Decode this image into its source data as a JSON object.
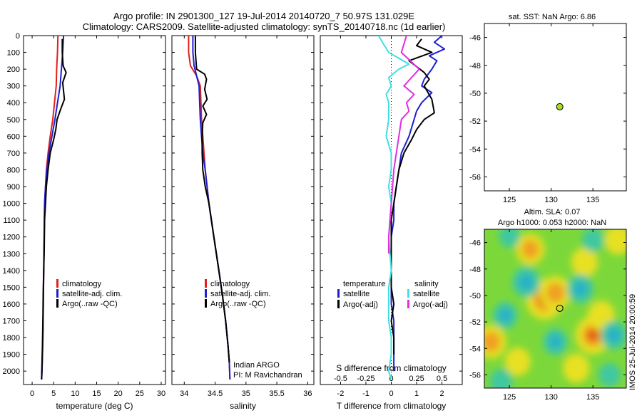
{
  "header": {
    "line1": "Argo profile: IN 2901300_127 19-Jul-2014 20140720_7 50.97S 131.029E",
    "line2": "Climatology: CARS2009. Satellite-adjusted climatology: synTS_20140718.nc (1d earlier)"
  },
  "colors": {
    "climatology": "#e0201a",
    "satellite": "#1f1fd0",
    "argo": "#000000",
    "sal_satellite": "#3fe0e0",
    "sal_argo": "#e030e0",
    "marker": "#aadd22"
  },
  "chart_data": [
    {
      "id": "temperature",
      "type": "line",
      "xlabel": "temperature (deg C)",
      "ylabel": "",
      "xlim": [
        -2,
        31
      ],
      "ylim": [
        2080,
        0
      ],
      "xticks": [
        0,
        5,
        10,
        15,
        20,
        25,
        30
      ],
      "yticks": [
        0,
        100,
        200,
        300,
        400,
        500,
        600,
        700,
        800,
        900,
        1000,
        1100,
        1200,
        1300,
        1400,
        1500,
        1600,
        1700,
        1800,
        1900,
        2000
      ],
      "legend": [
        "climatology",
        "satellite-adj. clim.",
        "Argo(..raw -QC)"
      ],
      "series": [
        {
          "name": "climatology",
          "color": "#e0201a",
          "x": [
            6.0,
            5.9,
            5.7,
            5.6,
            5.2,
            4.8,
            4.2,
            3.7,
            3.3,
            3.1,
            2.9,
            2.8,
            2.7,
            2.6,
            2.5,
            2.4,
            2.3,
            2.2
          ],
          "y": [
            0,
            100,
            200,
            300,
            400,
            500,
            600,
            700,
            800,
            900,
            1000,
            1200,
            1400,
            1600,
            1800,
            1900,
            2000,
            2050
          ]
        },
        {
          "name": "satellite-adj. clim.",
          "color": "#1f1fd0",
          "x": [
            7.3,
            7.1,
            6.8,
            6.5,
            5.9,
            5.3,
            4.6,
            3.9,
            3.4,
            3.1,
            2.9,
            2.8,
            2.7,
            2.6,
            2.5,
            2.4,
            2.3,
            2.2
          ],
          "y": [
            0,
            100,
            200,
            300,
            400,
            500,
            600,
            700,
            800,
            900,
            1000,
            1200,
            1400,
            1600,
            1800,
            1900,
            2000,
            2050
          ]
        },
        {
          "name": "Argo(..raw -QC)",
          "color": "#000000",
          "x": [
            7.0,
            7.0,
            7.2,
            7.9,
            7.1,
            7.5,
            6.6,
            5.8,
            5.5,
            5.0,
            4.2,
            3.7,
            3.3,
            3.1,
            2.9,
            2.8,
            2.6,
            2.5,
            2.4,
            2.3,
            2.2
          ],
          "y": [
            20,
            100,
            180,
            220,
            280,
            380,
            440,
            500,
            560,
            620,
            700,
            800,
            900,
            1000,
            1100,
            1300,
            1500,
            1700,
            1850,
            1950,
            2050
          ]
        }
      ]
    },
    {
      "id": "salinity",
      "type": "line",
      "xlabel": "salinity",
      "ylabel": "",
      "xlim": [
        33.8,
        36.1
      ],
      "ylim": [
        2080,
        0
      ],
      "xticks": [
        34,
        34.5,
        35,
        35.5,
        36
      ],
      "legend": [
        "climatology",
        "satellite-adj. clim.",
        "Argo(..raw -QC)"
      ],
      "annotations": [
        "Indian ARGO",
        "PI: M Ravichandran"
      ],
      "series": [
        {
          "name": "climatology",
          "color": "#e0201a",
          "x": [
            34.07,
            34.07,
            34.1,
            34.2,
            34.26,
            34.27,
            34.28,
            34.3,
            34.34,
            34.4,
            34.48,
            34.56,
            34.62,
            34.67,
            34.71,
            34.73,
            34.74
          ],
          "y": [
            0,
            100,
            180,
            240,
            300,
            400,
            500,
            600,
            800,
            1000,
            1200,
            1400,
            1550,
            1700,
            1850,
            1950,
            2050
          ]
        },
        {
          "name": "satellite-adj. clim.",
          "color": "#1f1fd0",
          "x": [
            34.14,
            34.14,
            34.16,
            34.2,
            34.24,
            34.25,
            34.26,
            34.28,
            34.3,
            34.34,
            34.4,
            34.48,
            34.56,
            34.62,
            34.67,
            34.71,
            34.73,
            34.74
          ],
          "y": [
            0,
            100,
            180,
            240,
            300,
            400,
            500,
            600,
            700,
            800,
            1000,
            1200,
            1400,
            1550,
            1700,
            1850,
            1950,
            2050
          ]
        },
        {
          "name": "Argo(..raw -QC)",
          "color": "#000000",
          "x": [
            34.18,
            34.18,
            34.2,
            34.33,
            34.36,
            34.33,
            34.37,
            34.3,
            34.36,
            34.3,
            34.29,
            34.29,
            34.3,
            34.34,
            34.4,
            34.48,
            34.56,
            34.62,
            34.67,
            34.71,
            34.73
          ],
          "y": [
            0,
            100,
            200,
            230,
            260,
            320,
            380,
            420,
            470,
            520,
            600,
            700,
            800,
            900,
            1000,
            1200,
            1400,
            1550,
            1700,
            1850,
            1950
          ]
        }
      ]
    },
    {
      "id": "difference",
      "type": "line",
      "xlabel": "T difference from climatology",
      "xlabel_top": "S difference from climatology",
      "xlim": [
        -2.8,
        2.8
      ],
      "ylim": [
        2080,
        0
      ],
      "xticks": [
        -2,
        -1,
        0,
        1,
        2
      ],
      "xticks_s": [
        -0.5,
        -0.25,
        0,
        0.25,
        0.5
      ],
      "xticks_s_labels": [
        "-0.5",
        "-0.25",
        "0",
        "0.25",
        "0.5"
      ],
      "legend_titles": [
        "temperature",
        "salinity"
      ],
      "legend": [
        "satellite",
        "Argo(-adj)",
        "satellite",
        "Argo(-adj)"
      ],
      "series": [
        {
          "name": "temperature satellite",
          "color": "#1f1fd0",
          "x": [
            2.0,
            1.7,
            2.1,
            1.5,
            1.8,
            1.6,
            1.3,
            1.2,
            1.6,
            1.2,
            1.0,
            0.9,
            0.7,
            0.4,
            0.3,
            0.2,
            0.1,
            0.1,
            0.0,
            0.0,
            0.0,
            0.0,
            0.1,
            0.1,
            0.1,
            0.1
          ],
          "y": [
            0,
            40,
            80,
            120,
            150,
            200,
            260,
            300,
            340,
            400,
            450,
            500,
            600,
            700,
            800,
            900,
            1000,
            1100,
            1200,
            1400,
            1500,
            1600,
            1700,
            1800,
            1900,
            2000
          ]
        },
        {
          "name": "temperature Argo(-adj)",
          "color": "#000000",
          "x": [
            1.2,
            1.0,
            1.6,
            0.7,
            1.3,
            1.5,
            1.3,
            1.6,
            1.7,
            1.3,
            1.0,
            0.8,
            0.5,
            0.3,
            0.2,
            0.1,
            0.0,
            0.0,
            0.0,
            0.0,
            0.0,
            0.1,
            0.0,
            0.1,
            0.1
          ],
          "y": [
            20,
            60,
            100,
            150,
            220,
            260,
            300,
            380,
            460,
            500,
            560,
            620,
            700,
            800,
            900,
            1000,
            1100,
            1200,
            1300,
            1400,
            1500,
            1600,
            1700,
            1800,
            1900
          ]
        },
        {
          "name": "salinity satellite",
          "color": "#3fe0e0",
          "x": [
            -0.5,
            -0.35,
            -0.1,
            0.7,
            0.3,
            -0.1,
            0.0,
            -0.2,
            -0.1,
            -0.1,
            -0.2,
            0.0,
            0.0,
            -0.1,
            0.0,
            -0.1,
            0.0,
            -0.1,
            -0.1,
            -0.1,
            0.0,
            0.0,
            -0.1,
            0.0
          ],
          "y": [
            0,
            40,
            100,
            170,
            200,
            250,
            300,
            350,
            400,
            500,
            600,
            700,
            800,
            900,
            1000,
            1200,
            1400,
            1500,
            1600,
            1700,
            1800,
            1900,
            2000,
            2050
          ]
        },
        {
          "name": "salinity Argo(-adj)",
          "color": "#e030e0",
          "x": [
            0.6,
            0.5,
            0.4,
            1.1,
            0.8,
            0.5,
            0.9,
            0.6,
            0.7,
            0.4,
            0.3,
            0.2,
            0.1,
            0.0,
            -0.1,
            -0.1
          ],
          "y": [
            0,
            50,
            100,
            200,
            250,
            300,
            350,
            400,
            450,
            500,
            600,
            700,
            800,
            1000,
            1200,
            1300
          ]
        }
      ]
    },
    {
      "id": "sst_map",
      "type": "scatter",
      "title": "sat. SST: NaN Argo: 6.86",
      "xlim": [
        122,
        139
      ],
      "ylim": [
        -57,
        -45
      ],
      "xticks": [
        125,
        130,
        135
      ],
      "yticks": [
        -46,
        -48,
        -50,
        -52,
        -54,
        -56
      ],
      "points": [
        {
          "x": 131.029,
          "y": -50.97
        }
      ]
    },
    {
      "id": "sla_map",
      "type": "heatmap",
      "title_line1": "Altim. SLA: 0.07",
      "title_line2": "Argo h1000: 0.053 h2000: NaN",
      "xlim": [
        122,
        139
      ],
      "ylim": [
        -57,
        -45
      ],
      "xticks": [
        125,
        130,
        135
      ],
      "yticks": [
        -46,
        -48,
        -50,
        -52,
        -54,
        -56
      ],
      "points": [
        {
          "x": 131.029,
          "y": -50.97
        }
      ],
      "blobs": [
        {
          "x": 129.2,
          "y": -50.3,
          "v": 1.0
        },
        {
          "x": 130.5,
          "y": -49.8,
          "v": 0.7
        },
        {
          "x": 135.0,
          "y": -53.0,
          "v": 0.9
        },
        {
          "x": 136.0,
          "y": -51.5,
          "v": 0.5
        },
        {
          "x": 127.5,
          "y": -46.5,
          "v": 0.6
        },
        {
          "x": 133.0,
          "y": -55.5,
          "v": 0.5
        },
        {
          "x": 122.8,
          "y": -53.5,
          "v": 0.7
        },
        {
          "x": 126.0,
          "y": -55.0,
          "v": 0.45
        },
        {
          "x": 134.0,
          "y": -47.5,
          "v": 0.5
        },
        {
          "x": 138.0,
          "y": -45.8,
          "v": 0.5
        },
        {
          "x": 127.0,
          "y": -49.0,
          "v": -0.8
        },
        {
          "x": 133.5,
          "y": -49.5,
          "v": -0.7
        },
        {
          "x": 124.5,
          "y": -51.5,
          "v": -0.6
        },
        {
          "x": 130.5,
          "y": -53.5,
          "v": -0.6
        },
        {
          "x": 137.5,
          "y": -53.0,
          "v": -0.7
        },
        {
          "x": 135.0,
          "y": -45.8,
          "v": -0.45
        },
        {
          "x": 125.0,
          "y": -45.5,
          "v": -0.4
        },
        {
          "x": 124.0,
          "y": -56.5,
          "v": -0.5
        },
        {
          "x": 137.0,
          "y": -56.0,
          "v": -0.45
        }
      ]
    }
  ],
  "credit": "IMOS 25-Jul-2014 20:00:59"
}
